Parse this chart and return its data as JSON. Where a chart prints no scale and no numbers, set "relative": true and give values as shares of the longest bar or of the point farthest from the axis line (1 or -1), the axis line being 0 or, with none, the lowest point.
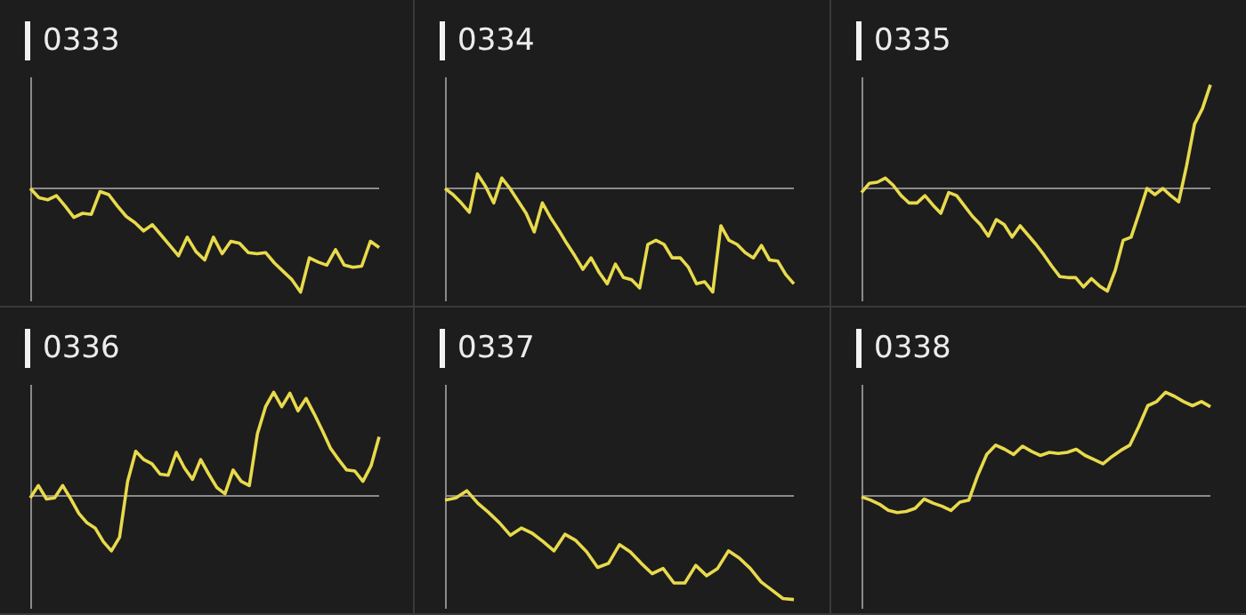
{
  "chart_data": [
    {
      "type": "line",
      "title": "0333",
      "relative": true,
      "color": "#e8da4c",
      "categories": [
        null,
        null,
        null,
        null,
        null,
        null,
        null,
        null,
        null,
        null,
        null,
        null,
        null,
        null,
        null,
        null,
        null,
        null,
        null,
        null,
        null,
        null,
        null,
        null,
        null,
        null,
        null,
        null,
        null,
        null,
        null,
        null,
        null,
        null,
        null,
        null,
        null,
        null,
        null,
        null,
        null
      ],
      "values": [
        0,
        -0.09,
        -0.11,
        -0.07,
        -0.17,
        -0.28,
        -0.24,
        -0.25,
        -0.03,
        -0.06,
        -0.17,
        -0.27,
        -0.33,
        -0.41,
        -0.35,
        -0.45,
        -0.55,
        -0.65,
        -0.47,
        -0.61,
        -0.69,
        -0.47,
        -0.63,
        -0.51,
        -0.53,
        -0.62,
        -0.63,
        -0.62,
        -0.72,
        -0.8,
        -0.88,
        -1,
        -0.67,
        -0.71,
        -0.74,
        -0.59,
        -0.74,
        -0.76,
        -0.75,
        -0.51,
        -0.57
      ]
    },
    {
      "type": "line",
      "title": "0334",
      "relative": true,
      "color": "#e8da4c",
      "categories": [
        null,
        null,
        null,
        null,
        null,
        null,
        null,
        null,
        null,
        null,
        null,
        null,
        null,
        null,
        null,
        null,
        null,
        null,
        null,
        null,
        null,
        null,
        null,
        null,
        null,
        null,
        null,
        null,
        null,
        null,
        null,
        null,
        null,
        null,
        null,
        null,
        null,
        null,
        null,
        null,
        null,
        null,
        null,
        null
      ],
      "values": [
        0,
        -0.06,
        -0.14,
        -0.23,
        0.14,
        0.02,
        -0.14,
        0.1,
        0,
        -0.12,
        -0.24,
        -0.42,
        -0.14,
        -0.28,
        -0.4,
        -0.53,
        -0.65,
        -0.78,
        -0.67,
        -0.81,
        -0.92,
        -0.73,
        -0.86,
        -0.88,
        -0.96,
        -0.54,
        -0.5,
        -0.54,
        -0.67,
        -0.67,
        -0.76,
        -0.92,
        -0.9,
        -1,
        -0.36,
        -0.5,
        -0.54,
        -0.62,
        -0.67,
        -0.55,
        -0.69,
        -0.7,
        -0.83,
        -0.92
      ]
    },
    {
      "type": "line",
      "title": "0335",
      "relative": true,
      "color": "#e8da4c",
      "categories": [
        null,
        null,
        null,
        null,
        null,
        null,
        null,
        null,
        null,
        null,
        null,
        null,
        null,
        null,
        null,
        null,
        null,
        null,
        null,
        null,
        null,
        null,
        null,
        null,
        null,
        null,
        null,
        null,
        null,
        null,
        null,
        null,
        null,
        null,
        null,
        null,
        null,
        null,
        null,
        null,
        null,
        null,
        null,
        null,
        null
      ],
      "values": [
        -0.04,
        0.05,
        0.06,
        0.1,
        0.03,
        -0.07,
        -0.14,
        -0.14,
        -0.07,
        -0.16,
        -0.24,
        -0.04,
        -0.07,
        -0.17,
        -0.27,
        -0.35,
        -0.46,
        -0.3,
        -0.35,
        -0.47,
        -0.36,
        -0.45,
        -0.54,
        -0.64,
        -0.75,
        -0.85,
        -0.86,
        -0.86,
        -0.95,
        -0.87,
        -0.94,
        -0.99,
        -0.79,
        -0.5,
        -0.47,
        -0.24,
        0,
        -0.06,
        0,
        -0.07,
        -0.13,
        0.22,
        0.62,
        0.77,
        1
      ]
    },
    {
      "type": "line",
      "title": "0336",
      "relative": true,
      "color": "#e8da4c",
      "categories": [
        null,
        null,
        null,
        null,
        null,
        null,
        null,
        null,
        null,
        null,
        null,
        null,
        null,
        null,
        null,
        null,
        null,
        null,
        null,
        null,
        null,
        null,
        null,
        null,
        null,
        null,
        null,
        null,
        null,
        null,
        null,
        null,
        null,
        null,
        null,
        null,
        null,
        null,
        null,
        null,
        null,
        null,
        null,
        null
      ],
      "values": [
        -0.02,
        0.1,
        -0.03,
        -0.02,
        0.1,
        -0.03,
        -0.17,
        -0.26,
        -0.31,
        -0.44,
        -0.53,
        -0.4,
        0.14,
        0.43,
        0.35,
        0.31,
        0.21,
        0.2,
        0.42,
        0.27,
        0.16,
        0.35,
        0.21,
        0.08,
        0.02,
        0.25,
        0.14,
        0.1,
        0.6,
        0.86,
        1,
        0.86,
        0.99,
        0.82,
        0.94,
        0.79,
        0.63,
        0.46,
        0.35,
        0.25,
        0.24,
        0.14,
        0.29,
        0.57
      ]
    },
    {
      "type": "line",
      "title": "0337",
      "relative": true,
      "color": "#e8da4c",
      "categories": [
        null,
        null,
        null,
        null,
        null,
        null,
        null,
        null,
        null,
        null,
        null,
        null,
        null,
        null,
        null,
        null,
        null,
        null,
        null,
        null,
        null,
        null,
        null,
        null,
        null,
        null,
        null,
        null,
        null,
        null,
        null,
        null,
        null
      ],
      "values": [
        -0.04,
        -0.02,
        0.05,
        -0.07,
        -0.16,
        -0.26,
        -0.38,
        -0.31,
        -0.36,
        -0.44,
        -0.53,
        -0.37,
        -0.43,
        -0.54,
        -0.69,
        -0.65,
        -0.47,
        -0.54,
        -0.65,
        -0.75,
        -0.7,
        -0.84,
        -0.84,
        -0.67,
        -0.77,
        -0.7,
        -0.53,
        -0.6,
        -0.7,
        -0.83,
        -0.91,
        -0.99,
        -1
      ]
    },
    {
      "type": "line",
      "title": "0338",
      "relative": true,
      "color": "#e8da4c",
      "categories": [
        null,
        null,
        null,
        null,
        null,
        null,
        null,
        null,
        null,
        null,
        null,
        null,
        null,
        null,
        null,
        null,
        null,
        null,
        null,
        null,
        null,
        null,
        null,
        null,
        null,
        null,
        null,
        null,
        null,
        null,
        null,
        null,
        null,
        null,
        null,
        null,
        null,
        null,
        null,
        null
      ],
      "values": [
        -0.01,
        -0.04,
        -0.08,
        -0.14,
        -0.16,
        -0.15,
        -0.12,
        -0.03,
        -0.07,
        -0.1,
        -0.14,
        -0.06,
        -0.04,
        0.2,
        0.4,
        0.49,
        0.45,
        0.4,
        0.48,
        0.43,
        0.39,
        0.42,
        0.41,
        0.42,
        0.45,
        0.39,
        0.35,
        0.31,
        0.38,
        0.44,
        0.49,
        0.67,
        0.87,
        0.91,
        1,
        0.96,
        0.91,
        0.87,
        0.91,
        0.86
      ]
    }
  ]
}
